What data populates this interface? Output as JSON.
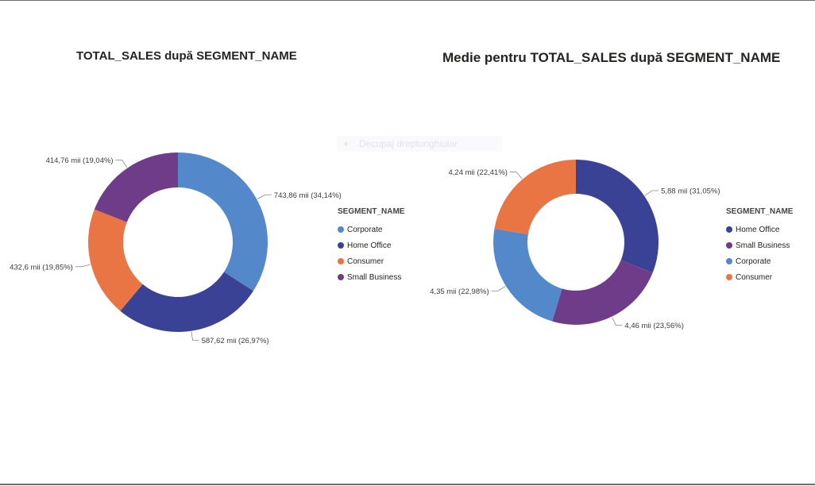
{
  "chart_data": [
    {
      "type": "pie",
      "variant": "donut",
      "title": "TOTAL_SALES după SEGMENT_NAME",
      "legend_title": "SEGMENT_NAME",
      "legend_placement": "right",
      "slices": [
        {
          "name": "Corporate",
          "value": 743.86,
          "percent": 34.14,
          "label": "743,86 mii (34,14%)",
          "color": "#5388ca"
        },
        {
          "name": "Home Office",
          "value": 587.62,
          "percent": 26.97,
          "label": "587,62 mii (26,97%)",
          "color": "#3a4296"
        },
        {
          "name": "Consumer",
          "value": 432.6,
          "percent": 19.85,
          "label": "432,6 mii (19,85%)",
          "color": "#e97545"
        },
        {
          "name": "Small Business",
          "value": 414.76,
          "percent": 19.04,
          "label": "414,76 mii (19,04%)",
          "color": "#6f3c8a"
        }
      ]
    },
    {
      "type": "pie",
      "variant": "donut",
      "title": "Medie pentru TOTAL_SALES după SEGMENT_NAME",
      "legend_title": "SEGMENT_NAME",
      "legend_placement": "right",
      "slices": [
        {
          "name": "Home Office",
          "value": 5.88,
          "percent": 31.05,
          "label": "5,88 mii (31,05%)",
          "color": "#3a4296"
        },
        {
          "name": "Small Business",
          "value": 4.46,
          "percent": 23.56,
          "label": "4,46 mii (23,56%)",
          "color": "#6f3c8a"
        },
        {
          "name": "Corporate",
          "value": 4.35,
          "percent": 22.98,
          "label": "4,35 mii (22,98%)",
          "color": "#5388ca"
        },
        {
          "name": "Consumer",
          "value": 4.24,
          "percent": 22.41,
          "label": "4,24 mii (22,41%)",
          "color": "#e97545"
        }
      ]
    }
  ],
  "overlay_button": {
    "label": "Decupaj dreptunghiular",
    "icon": "plus-icon"
  }
}
